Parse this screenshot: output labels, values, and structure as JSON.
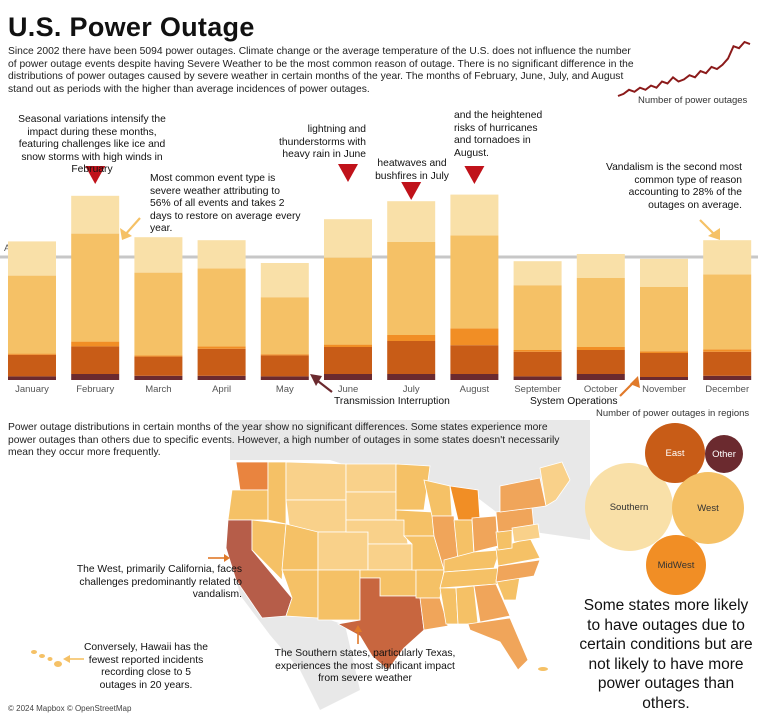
{
  "title": "U.S. Power Outage",
  "intro": "Since 2002 there have been 5094 power outages. Climate change or the average temperature of the U.S. does not influence the number of power outage events despite having Severe Weather to be the most common reason of outage. There is no significant difference in the distributions of power outages caused by severe weather in certain months of the year. The months of February, June, July, and August stand out as periods with the higher than average incidences of power outages.",
  "sparkline": {
    "label": "Number of power outages",
    "values": [
      2,
      3,
      5,
      4,
      6,
      5,
      7,
      6,
      9,
      8,
      11,
      9,
      10,
      12,
      11,
      14,
      13,
      16,
      15,
      17,
      20,
      26,
      25,
      28,
      27
    ]
  },
  "bar_annotations": {
    "seasonal": "Seasonal variations intensify the impact during these months, featuring challenges like ice and snow storms with high winds in February",
    "severe": "Most common event type is severe weather attributing to 56% of all events and takes 2 days to restore on average every year.",
    "june": "lightning and thunderstorms with heavy rain in June",
    "july": "heatwaves and bushfires in July",
    "august": "and the heightened risks of hurricanes and tornadoes in August.",
    "vandalism": "Vandalism is the second most common type of reason accounting to 28% of the outages on average.",
    "transmission": "Transmission Interruption",
    "system_ops": "System Operations",
    "average_label": "Average"
  },
  "chart_data": {
    "type": "bar",
    "stacked": true,
    "categories": [
      "January",
      "February",
      "March",
      "April",
      "May",
      "June",
      "July",
      "August",
      "September",
      "October",
      "November",
      "December"
    ],
    "series": [
      {
        "key": "base",
        "color": "#6b2a2f",
        "values": [
          6,
          10,
          7,
          7,
          6,
          10,
          10,
          10,
          6,
          10,
          5,
          7
        ]
      },
      {
        "key": "s2",
        "color": "#c85c17",
        "values": [
          36,
          46,
          32,
          45,
          35,
          45,
          55,
          48,
          41,
          40,
          40,
          40
        ]
      },
      {
        "key": "s3",
        "color": "#f18e25",
        "values": [
          2,
          8,
          2,
          4,
          2,
          4,
          10,
          28,
          3,
          5,
          3,
          4
        ]
      },
      {
        "key": "s4",
        "color": "#f5c166",
        "values": [
          130,
          180,
          138,
          130,
          95,
          145,
          155,
          155,
          108,
          115,
          107,
          125
        ]
      },
      {
        "key": "s5",
        "color": "#f9e0a8",
        "values": [
          57,
          63,
          59,
          47,
          57,
          64,
          68,
          68,
          40,
          40,
          47,
          57
        ]
      }
    ],
    "average": 205,
    "ylim": [
      0,
      300
    ],
    "xlabel": "",
    "ylabel": ""
  },
  "map_text": "Power outage distributions in certain months of the year show no significant differences. Some states experience more power outages than others due to specific events. However, a high number of outages in some states doesn't necessarily mean they occur more frequently.",
  "map_notes": {
    "west": "The West, primarily California, faces challenges predominantly related to vandalism.",
    "south": "The Southern states, particularly Texas, experiences the most significant impact from severe weather",
    "hawaii": "Conversely, Hawaii has the fewest reported incidents recording close to 5 outages in 20 years."
  },
  "attribution": "© 2024 Mapbox © OpenStreetMap",
  "bubbles": {
    "title": "Number of power outages in regions",
    "items": [
      {
        "name": "East",
        "color": "#c85c17"
      },
      {
        "name": "Other",
        "color": "#6b2a2f"
      },
      {
        "name": "Southern",
        "color": "#f9e0a8"
      },
      {
        "name": "West",
        "color": "#f5c166"
      },
      {
        "name": "MidWest",
        "color": "#f18e25"
      }
    ]
  },
  "conclusion": "Some states more likely to have outages due to certain conditions but are not likely to have more power outages than others."
}
